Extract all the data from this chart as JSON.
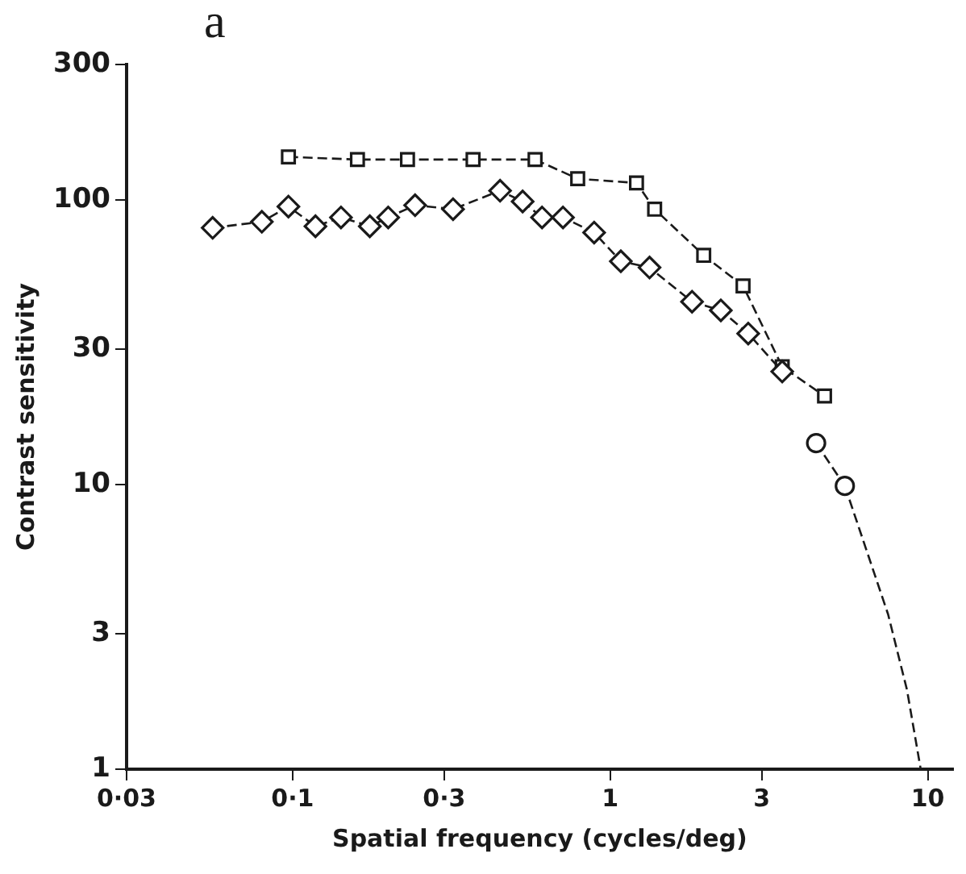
{
  "chart_data": {
    "type": "line",
    "xlabel": "Spatial frequency (cycles/deg)",
    "ylabel": "Contrast sensitivity",
    "annotations": [
      "a"
    ],
    "log": "xy",
    "xlim": [
      0.03,
      12
    ],
    "ylim": [
      1,
      300
    ],
    "xticks": [
      {
        "value": 0.03,
        "label": "0·03"
      },
      {
        "value": 0.1,
        "label": "0·1"
      },
      {
        "value": 0.3,
        "label": "0·3"
      },
      1,
      3,
      10
    ],
    "yticks": [
      1,
      3,
      10,
      30,
      100,
      300
    ],
    "grid": false,
    "legend": false,
    "line_style": "dashed",
    "series": [
      {
        "color": "#1a1a1a",
        "marker": "square",
        "x": [
          0.097,
          0.16,
          0.23,
          0.37,
          0.58,
          0.79,
          1.21,
          1.38,
          1.97,
          2.62,
          3.48,
          4.73
        ],
        "values": [
          142,
          139,
          139,
          139,
          139,
          119,
          115,
          93,
          64,
          50,
          26,
          20.5
        ]
      },
      {
        "color": "#1a1a1a",
        "marker": "diamond",
        "x": [
          0.056,
          0.08,
          0.097,
          0.118,
          0.142,
          0.175,
          0.2,
          0.243,
          0.32,
          0.45,
          0.53,
          0.61,
          0.71,
          0.89,
          1.08,
          1.33,
          1.81,
          2.23,
          2.72,
          3.48
        ],
        "values": [
          80,
          84,
          95,
          81,
          87,
          81,
          87,
          96,
          93,
          108,
          99,
          87,
          87,
          77,
          61,
          58,
          44,
          41,
          34,
          25
        ]
      },
      {
        "color": "#1a1a1a",
        "marker": "circle",
        "x": [
          4.45,
          5.48
        ],
        "values": [
          14,
          9.9
        ]
      },
      {
        "color": "#1a1a1a",
        "marker": "none",
        "x": [
          5.48,
          7.5,
          8.6,
          9.5
        ],
        "values": [
          9.9,
          3.5,
          1.9,
          1
        ]
      }
    ]
  }
}
